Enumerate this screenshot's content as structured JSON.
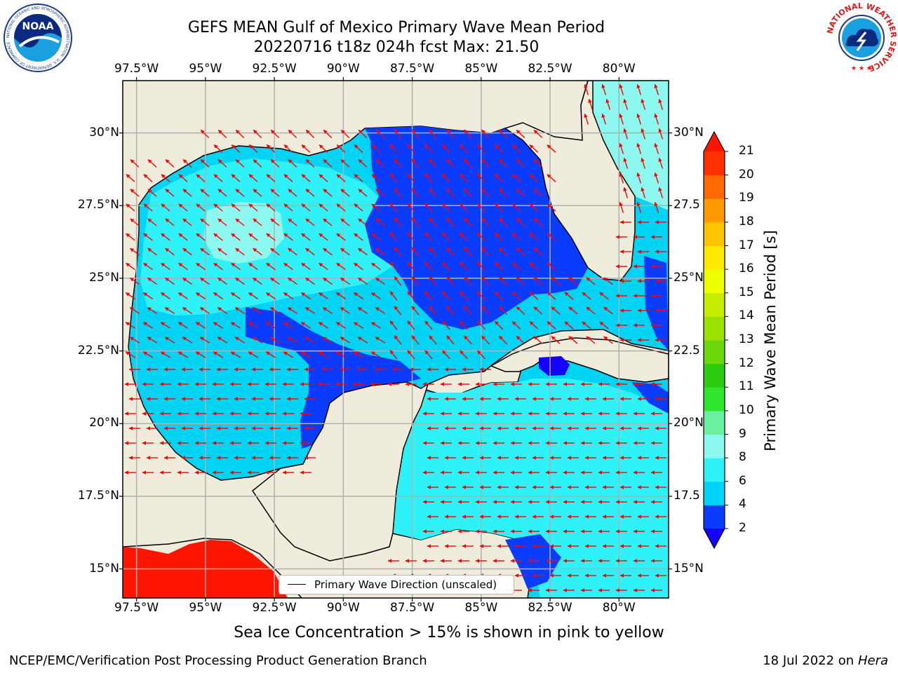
{
  "title": {
    "line1": "GEFS MEAN Gulf of Mexico Primary Wave Mean Period",
    "line2": "20220716 t18z 024h fcst   Max: 21.50"
  },
  "map": {
    "lon_ticks": [
      "97.5°W",
      "95°W",
      "92.5°W",
      "90°W",
      "87.5°W",
      "85°W",
      "82.5°W",
      "80°W"
    ],
    "lat_ticks_left": [
      "30°N",
      "27.5°N",
      "25°N",
      "22.5°N",
      "20°N",
      "17.5°N",
      "15°N"
    ],
    "lat_ticks_right": [
      "30°N",
      "27.5",
      "25°N",
      "22.5",
      "20°N",
      "17.5",
      "15°N"
    ],
    "lon_range": [
      -98,
      -78.2
    ],
    "lat_range": [
      14.0,
      31.8
    ],
    "land_color": "#efecdc",
    "arrow_color": "#ff0000",
    "legend_label": "Primary Wave Direction (unscaled)"
  },
  "colorbar": {
    "label": "Primary Wave Mean Period [s]",
    "tick_labels": [
      "2",
      "4",
      "6",
      "8",
      "9",
      "10",
      "11",
      "12",
      "13",
      "14",
      "15",
      "16",
      "17",
      "18",
      "19",
      "20",
      "21"
    ],
    "colors": [
      "#0a3cff",
      "#00d4f5",
      "#2ef2f8",
      "#8cf8f0",
      "#6af0a0",
      "#2ee62e",
      "#2ecc10",
      "#6ad808",
      "#9ae000",
      "#c8ec00",
      "#eeff00",
      "#ffe800",
      "#ffc400",
      "#ff9a00",
      "#ff6a00",
      "#ff3000"
    ],
    "under_color": "#1400ff",
    "over_color": "#ff1400"
  },
  "caption": "Sea Ice Concentration > 15% is shown in pink to yellow",
  "footer": {
    "left": "NCEP/EMC/Verification Post Processing Product Generation Branch",
    "right_date": "18 Jul 2022 on ",
    "right_host": "Hera"
  },
  "logos": {
    "noaa_text": "NOAA",
    "noaa_ring": "NATIONAL OCEANIC AND ATMOSPHERIC ADMINISTRATION · U.S. DEPARTMENT OF COMMERCE",
    "nws_ring": "NATIONAL WEATHER SERVICE"
  }
}
